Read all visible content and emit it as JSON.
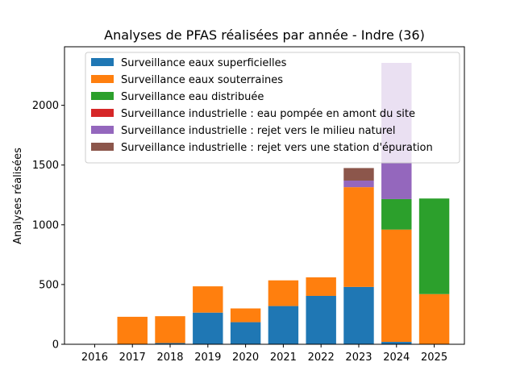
{
  "chart_data": {
    "type": "bar",
    "stacked": true,
    "title": "Analyses de PFAS réalisées par année - Indre (36)",
    "xlabel": "",
    "ylabel": "Analyses réalisées",
    "categories": [
      "2016",
      "2017",
      "2018",
      "2019",
      "2020",
      "2021",
      "2022",
      "2023",
      "2024",
      "2025"
    ],
    "ylim": [
      0,
      2490
    ],
    "yticks": [
      0,
      500,
      1000,
      1500,
      2000
    ],
    "grid": false,
    "legend_position": "top-center",
    "series": [
      {
        "name": "Surveillance eaux superficielles",
        "color": "#1f77b4",
        "values": [
          0,
          0,
          10,
          265,
          185,
          320,
          405,
          480,
          20,
          0
        ]
      },
      {
        "name": "Surveillance eaux souterraines",
        "color": "#ff7f0e",
        "values": [
          0,
          230,
          225,
          220,
          115,
          215,
          155,
          835,
          940,
          420
        ]
      },
      {
        "name": "Surveillance eau distribuée",
        "color": "#2ca02c",
        "values": [
          0,
          0,
          0,
          0,
          0,
          0,
          0,
          0,
          255,
          800
        ]
      },
      {
        "name": "Surveillance industrielle : eau pompée en amont du site",
        "color": "#d62728",
        "values": [
          0,
          0,
          0,
          0,
          0,
          0,
          0,
          0,
          0,
          0
        ]
      },
      {
        "name": "Surveillance industrielle : rejet vers le milieu naturel",
        "color": "#9467bd",
        "values": [
          0,
          0,
          0,
          0,
          0,
          0,
          0,
          55,
          1140,
          0
        ]
      },
      {
        "name": "Surveillance industrielle : rejet vers une station d'épuration",
        "color": "#8c564b",
        "values": [
          0,
          0,
          0,
          0,
          0,
          0,
          0,
          105,
          0,
          0
        ]
      }
    ]
  }
}
